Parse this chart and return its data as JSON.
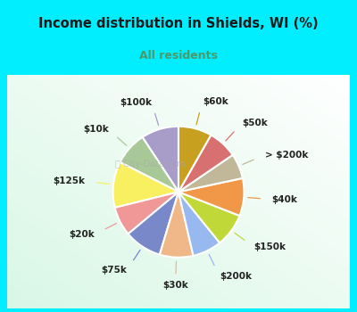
{
  "title": "Income distribution in Shields, WI (%)",
  "subtitle": "All residents",
  "title_color": "#1a1a1a",
  "subtitle_color": "#4a9a6a",
  "bg_cyan": "#00eeff",
  "bg_chart_colors": [
    "#f0fff8",
    "#d0f0e0"
  ],
  "labels": [
    "$100k",
    "$10k",
    "$125k",
    "$20k",
    "$75k",
    "$30k",
    "$200k",
    "$150k",
    "$40k",
    "> $200k",
    "$50k",
    "$60k"
  ],
  "values": [
    9,
    8,
    11,
    7,
    9,
    8,
    7,
    8,
    9,
    6,
    7,
    8
  ],
  "colors": [
    "#a89cc8",
    "#a8c898",
    "#f8f060",
    "#f09898",
    "#7888c8",
    "#f0b888",
    "#98b8f0",
    "#c0d838",
    "#f09848",
    "#c0b898",
    "#d87070",
    "#c8a020"
  ],
  "line_colors": [
    "#a89cc8",
    "#a8c898",
    "#f8f060",
    "#f09898",
    "#7888c8",
    "#f0b888",
    "#98b8f0",
    "#c0d838",
    "#f09848",
    "#c0b898",
    "#d87070",
    "#c8a020"
  ],
  "startangle": 90,
  "label_fontsize": 7.5,
  "wedge_linewidth": 1.5,
  "wedge_edgecolor": "#ffffff"
}
